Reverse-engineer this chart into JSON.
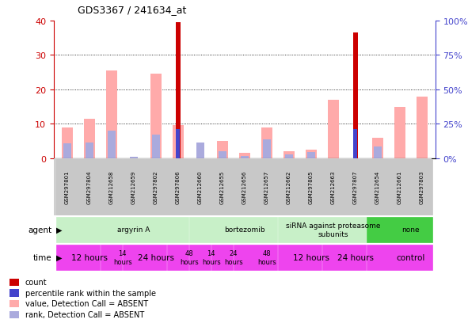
{
  "title": "GDS3367 / 241634_at",
  "samples": [
    "GSM297801",
    "GSM297804",
    "GSM212658",
    "GSM212659",
    "GSM297802",
    "GSM297806",
    "GSM212660",
    "GSM212655",
    "GSM212656",
    "GSM212657",
    "GSM212662",
    "GSM297805",
    "GSM212663",
    "GSM297807",
    "GSM212654",
    "GSM212661",
    "GSM297803"
  ],
  "count_values": [
    0,
    0,
    0,
    0,
    0,
    39.5,
    0,
    0,
    0,
    0,
    0,
    0,
    0,
    36.5,
    0,
    0,
    0
  ],
  "value_absent": [
    9,
    11.5,
    25.5,
    0,
    24.5,
    9.5,
    0,
    5,
    1.5,
    9,
    2,
    2.5,
    17,
    0,
    6,
    15,
    18
  ],
  "rank_present": [
    0,
    0,
    0,
    0,
    0,
    21,
    0,
    0,
    0,
    0,
    0,
    0,
    0,
    21,
    0,
    0,
    0
  ],
  "rank_absent": [
    11,
    11.5,
    20,
    1,
    17,
    0,
    11.5,
    5,
    1.5,
    13.5,
    3,
    4.5,
    0,
    0,
    8.5,
    0,
    0
  ],
  "ylim_left": [
    0,
    40
  ],
  "ylim_right": [
    0,
    100
  ],
  "yticks_left": [
    0,
    10,
    20,
    30,
    40
  ],
  "yticks_right": [
    0,
    25,
    50,
    75,
    100
  ],
  "yticklabels_right": [
    "0%",
    "25%",
    "50%",
    "75%",
    "100%"
  ],
  "agent_groups": [
    {
      "label": "argyrin A",
      "start": 0,
      "end": 6,
      "color": "#c8f0c8"
    },
    {
      "label": "bortezomib",
      "start": 6,
      "end": 10,
      "color": "#c8f0c8"
    },
    {
      "label": "siRNA against proteasome\nsubunits",
      "start": 10,
      "end": 14,
      "color": "#c8f0c8"
    },
    {
      "label": "none",
      "start": 14,
      "end": 17,
      "color": "#44cc44"
    }
  ],
  "time_groups": [
    {
      "label": "12 hours",
      "start": 0,
      "end": 2,
      "color": "#ee44ee",
      "fontsize": 7.5
    },
    {
      "label": "14\nhours",
      "start": 2,
      "end": 3,
      "color": "#ee44ee",
      "fontsize": 6
    },
    {
      "label": "24 hours",
      "start": 3,
      "end": 5,
      "color": "#ee44ee",
      "fontsize": 7.5
    },
    {
      "label": "48\nhours",
      "start": 5,
      "end": 6,
      "color": "#ee44ee",
      "fontsize": 6
    },
    {
      "label": "14\nhours",
      "start": 6,
      "end": 7,
      "color": "#ee44ee",
      "fontsize": 6
    },
    {
      "label": "24\nhours",
      "start": 7,
      "end": 8,
      "color": "#ee44ee",
      "fontsize": 6
    },
    {
      "label": "48\nhours",
      "start": 8,
      "end": 10,
      "color": "#ee44ee",
      "fontsize": 6
    },
    {
      "label": "12 hours",
      "start": 10,
      "end": 12,
      "color": "#ee44ee",
      "fontsize": 7.5
    },
    {
      "label": "24 hours",
      "start": 12,
      "end": 14,
      "color": "#ee44ee",
      "fontsize": 7.5
    },
    {
      "label": "control",
      "start": 14,
      "end": 17,
      "color": "#ee44ee",
      "fontsize": 7.5
    }
  ],
  "count_color": "#cc0000",
  "value_absent_color": "#ffaaaa",
  "rank_present_color": "#4444cc",
  "rank_absent_color": "#aaaadd",
  "bg_color": "#ffffff",
  "tick_label_color_left": "#cc0000",
  "tick_label_color_right": "#4444cc",
  "label_area_color": "#d0d0d0",
  "legend_items": [
    {
      "color": "#cc0000",
      "label": "count"
    },
    {
      "color": "#4444cc",
      "label": "percentile rank within the sample"
    },
    {
      "color": "#ffaaaa",
      "label": "value, Detection Call = ABSENT"
    },
    {
      "color": "#aaaadd",
      "label": "rank, Detection Call = ABSENT"
    }
  ]
}
